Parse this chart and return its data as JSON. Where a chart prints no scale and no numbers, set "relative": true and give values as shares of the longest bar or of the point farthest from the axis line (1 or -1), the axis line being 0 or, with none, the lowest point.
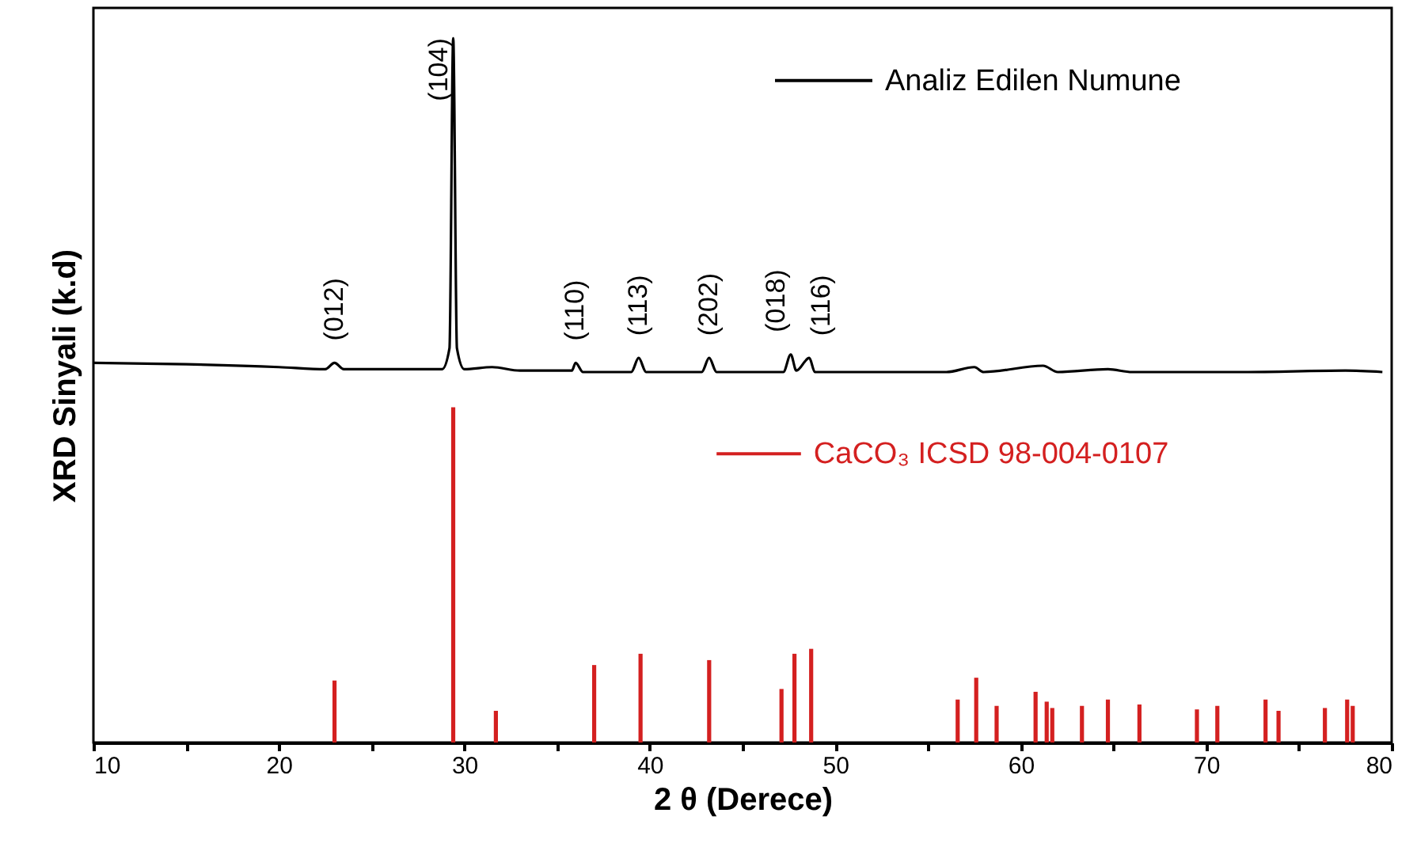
{
  "chart_data": {
    "type": "line",
    "relative": true,
    "xlabel": "2 θ (Derece)",
    "ylabel": "XRD Sinyali (k.d)",
    "xlim": [
      10,
      80
    ],
    "xticks": [
      10,
      {
        "value": 15,
        "label": null
      },
      20,
      {
        "value": 25,
        "label": null
      },
      30,
      {
        "value": 35,
        "label": null
      },
      40,
      {
        "value": 45,
        "label": null
      },
      50,
      {
        "value": 55,
        "label": null
      },
      60,
      {
        "value": 65,
        "label": null
      },
      70,
      {
        "value": 75,
        "label": null
      },
      80
    ],
    "legend": "right",
    "series": [
      {
        "name": "Analiz Edilen Numune",
        "color": "#000000",
        "x": [
          10,
          15,
          20,
          22.5,
          23.0,
          23.5,
          28.8,
          29.2,
          29.4,
          29.6,
          30.0,
          31.5,
          33,
          35.8,
          36.0,
          36.4,
          39.0,
          39.4,
          39.8,
          42.8,
          43.2,
          43.6,
          47.2,
          47.6,
          47.9,
          48.6,
          48.9,
          56,
          57.5,
          58,
          61.2,
          62,
          64.7,
          66,
          72,
          77.5,
          79.5
        ],
        "values": [
          0.539,
          0.537,
          0.533,
          0.53,
          0.539,
          0.53,
          0.53,
          0.56,
          1,
          0.56,
          0.53,
          0.533,
          0.528,
          0.528,
          0.539,
          0.526,
          0.526,
          0.546,
          0.526,
          0.526,
          0.546,
          0.526,
          0.526,
          0.551,
          0.528,
          0.546,
          0.526,
          0.526,
          0.533,
          0.526,
          0.535,
          0.526,
          0.53,
          0.526,
          0.526,
          0.528,
          0.526
        ]
      },
      {
        "name": "CaCO₃ ICSD  98-004-0107",
        "color": "#d42020",
        "type": "bar",
        "x": [
          23.0,
          29.4,
          31.7,
          37.0,
          39.5,
          43.2,
          47.1,
          47.8,
          48.7,
          56.6,
          57.6,
          58.7,
          60.8,
          61.4,
          61.7,
          63.3,
          64.7,
          66.4,
          69.5,
          70.6,
          73.2,
          73.9,
          76.4,
          77.6,
          77.9
        ],
        "values": [
          0.088,
          0.476,
          0.045,
          0.11,
          0.126,
          0.117,
          0.076,
          0.126,
          0.133,
          0.061,
          0.092,
          0.052,
          0.072,
          0.058,
          0.049,
          0.052,
          0.061,
          0.054,
          0.047,
          0.052,
          0.061,
          0.045,
          0.049,
          0.061,
          0.052
        ]
      }
    ],
    "annotations": [
      {
        "text": "(012)",
        "x": 23.0,
        "y": 0.539
      },
      {
        "text": "(104)",
        "x": 29.4,
        "y": 1
      },
      {
        "text": "(110)",
        "x": 36.0,
        "y": 0.539
      },
      {
        "text": "(113)",
        "x": 39.4,
        "y": 0.546
      },
      {
        "text": "(202)",
        "x": 43.2,
        "y": 0.546
      },
      {
        "text": "(018)",
        "x": 47.6,
        "y": 0.551
      },
      {
        "text": "(116)",
        "x": 48.6,
        "y": 0.546
      }
    ]
  }
}
